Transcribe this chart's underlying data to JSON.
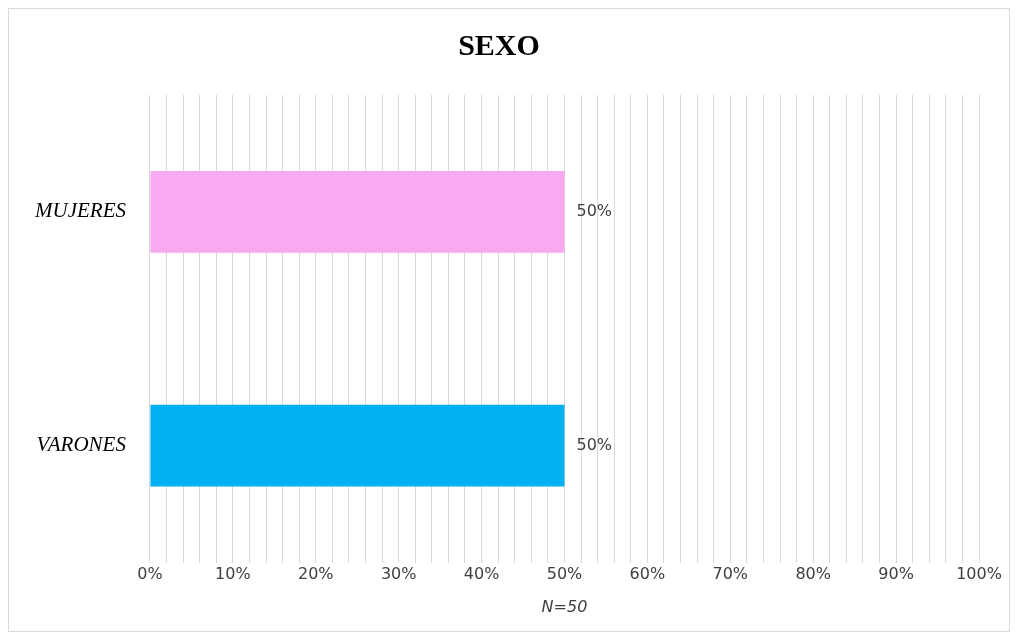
{
  "chart_data": {
    "type": "bar",
    "orientation": "horizontal",
    "title": "SEXO",
    "xlabel": "N=50",
    "categories": [
      "MUJERES",
      "VARONES"
    ],
    "values": [
      50,
      50
    ],
    "colors": [
      "#f9a8f2",
      "#00b0f0"
    ],
    "value_labels": [
      "50%",
      "50%"
    ],
    "xlim": [
      0,
      100
    ],
    "xticks": [
      {
        "value": 0,
        "label": "0%"
      },
      {
        "value": 2,
        "label": null
      },
      {
        "value": 4,
        "label": null
      },
      {
        "value": 6,
        "label": null
      },
      {
        "value": 8,
        "label": null
      },
      {
        "value": 10,
        "label": "10%"
      },
      {
        "value": 12,
        "label": null
      },
      {
        "value": 14,
        "label": null
      },
      {
        "value": 16,
        "label": null
      },
      {
        "value": 18,
        "label": null
      },
      {
        "value": 20,
        "label": "20%"
      },
      {
        "value": 22,
        "label": null
      },
      {
        "value": 24,
        "label": null
      },
      {
        "value": 26,
        "label": null
      },
      {
        "value": 28,
        "label": null
      },
      {
        "value": 30,
        "label": "30%"
      },
      {
        "value": 32,
        "label": null
      },
      {
        "value": 34,
        "label": null
      },
      {
        "value": 36,
        "label": null
      },
      {
        "value": 38,
        "label": null
      },
      {
        "value": 40,
        "label": "40%"
      },
      {
        "value": 42,
        "label": null
      },
      {
        "value": 44,
        "label": null
      },
      {
        "value": 46,
        "label": null
      },
      {
        "value": 48,
        "label": null
      },
      {
        "value": 50,
        "label": "50%"
      },
      {
        "value": 52,
        "label": null
      },
      {
        "value": 54,
        "label": null
      },
      {
        "value": 56,
        "label": null
      },
      {
        "value": 58,
        "label": null
      },
      {
        "value": 60,
        "label": "60%"
      },
      {
        "value": 62,
        "label": null
      },
      {
        "value": 64,
        "label": null
      },
      {
        "value": 66,
        "label": null
      },
      {
        "value": 68,
        "label": null
      },
      {
        "value": 70,
        "label": "70%"
      },
      {
        "value": 72,
        "label": null
      },
      {
        "value": 74,
        "label": null
      },
      {
        "value": 76,
        "label": null
      },
      {
        "value": 78,
        "label": null
      },
      {
        "value": 80,
        "label": "80%"
      },
      {
        "value": 82,
        "label": null
      },
      {
        "value": 84,
        "label": null
      },
      {
        "value": 86,
        "label": null
      },
      {
        "value": 88,
        "label": null
      },
      {
        "value": 90,
        "label": "90%"
      },
      {
        "value": 92,
        "label": null
      },
      {
        "value": 94,
        "label": null
      },
      {
        "value": 96,
        "label": null
      },
      {
        "value": 98,
        "label": null
      },
      {
        "value": 100,
        "label": "100%"
      }
    ],
    "grid": "x"
  }
}
